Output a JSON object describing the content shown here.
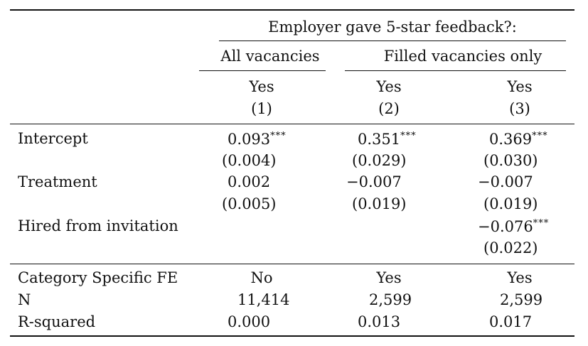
{
  "header": {
    "spanner": "Employer gave 5-star feedback?:",
    "group_all": "All vacancies",
    "group_filled": "Filled vacancies only",
    "columns": [
      {
        "outcome": "Yes",
        "number": "(1)"
      },
      {
        "outcome": "Yes",
        "number": "(2)"
      },
      {
        "outcome": "Yes",
        "number": "(3)"
      }
    ]
  },
  "rows": {
    "intercept": {
      "label": "Intercept",
      "coef": [
        "0.093",
        "0.351",
        "0.369"
      ],
      "stars": [
        "***",
        "***",
        "***"
      ],
      "se": [
        "(0.004)",
        "(0.029)",
        "(0.030)"
      ]
    },
    "treatment": {
      "label": "Treatment",
      "coef": [
        "0.002",
        "−0.007",
        "−0.007"
      ],
      "se": [
        "(0.005)",
        "(0.019)",
        "(0.019)"
      ]
    },
    "hired": {
      "label": "Hired from invitation",
      "coef": [
        "−0.076"
      ],
      "stars": [
        "***"
      ],
      "se": [
        "(0.022)"
      ]
    }
  },
  "stats": {
    "fe": {
      "label": "Category Specific FE",
      "values": [
        "No",
        "Yes",
        "Yes"
      ]
    },
    "n": {
      "label": "N",
      "values": [
        "11,414",
        "2,599",
        "2,599"
      ]
    },
    "r2": {
      "label": "R-squared",
      "values": [
        "0.000",
        "0.013",
        "0.017"
      ]
    }
  }
}
